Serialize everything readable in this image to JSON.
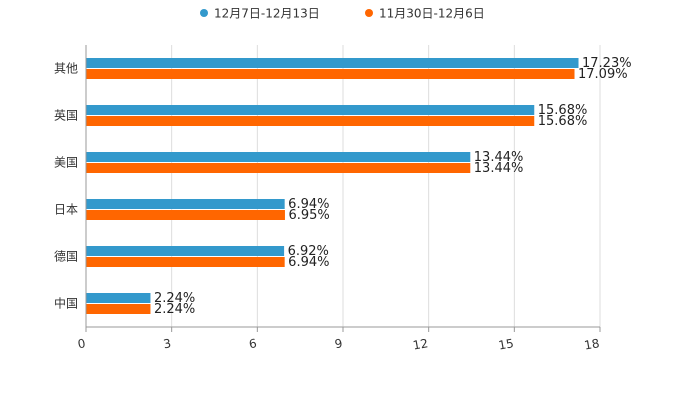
{
  "chart_data": {
    "type": "bar",
    "orientation": "horizontal",
    "title": "",
    "xlabel": "",
    "ylabel": "",
    "categories": [
      "其他",
      "英国",
      "美国",
      "日本",
      "德国",
      "中国"
    ],
    "series": [
      {
        "name": "12月7日-12月13日",
        "color": "#3399cc",
        "values": [
          17.23,
          15.68,
          13.44,
          6.94,
          6.92,
          2.24
        ],
        "labels": [
          "17.23%",
          "15.68%",
          "13.44%",
          "6.94%",
          "6.92%",
          "2.24%"
        ]
      },
      {
        "name": "11月30日-12月6日",
        "color": "#ff6600",
        "values": [
          17.09,
          15.68,
          13.44,
          6.95,
          6.94,
          2.24
        ],
        "labels": [
          "17.09%",
          "15.68%",
          "13.44%",
          "6.95%",
          "6.94%",
          "2.24%"
        ]
      }
    ],
    "xlim": [
      0,
      18
    ],
    "ticks": [
      0,
      3,
      6,
      9,
      12,
      15,
      18
    ],
    "tick_labels": [
      "0",
      "3",
      "6",
      "9",
      "12",
      "15",
      "18"
    ],
    "grid": true,
    "legend_position": "top-center"
  }
}
